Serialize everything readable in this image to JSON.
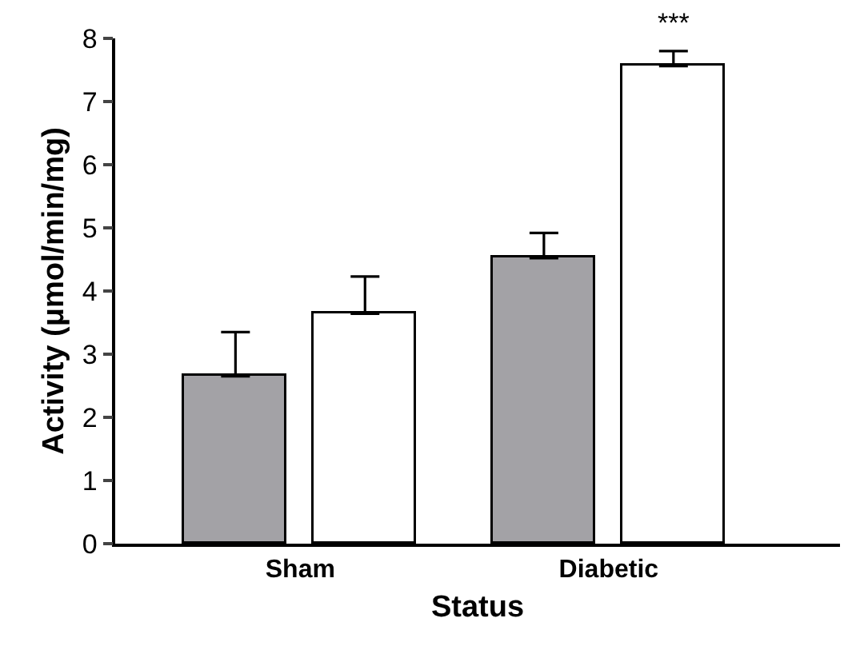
{
  "chart_data": {
    "type": "bar",
    "xlabel": "Status",
    "ylabel": "Activity (μmol/min/mg)",
    "categories": [
      "Sham",
      "Diabetic"
    ],
    "series": [
      {
        "color": "#a3a2a6",
        "values": [
          2.65,
          4.52
        ],
        "errors": [
          [
            2.65,
            3.35
          ],
          [
            4.52,
            4.92
          ]
        ]
      },
      {
        "color": "#ffffff",
        "values": [
          3.64,
          7.56
        ],
        "errors": [
          [
            3.64,
            4.23
          ],
          [
            7.56,
            7.8
          ]
        ]
      }
    ],
    "ylim": [
      0,
      8
    ],
    "yticks": [
      0,
      1,
      2,
      3,
      4,
      5,
      6,
      7,
      8
    ],
    "annotations": [
      "***"
    ]
  }
}
